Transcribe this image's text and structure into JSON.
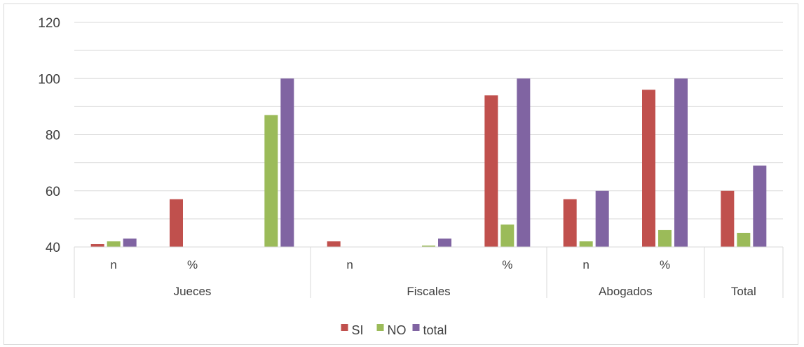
{
  "chart_data": {
    "type": "bar",
    "title": "",
    "xlabel": "",
    "ylabel": "",
    "ylim": [
      40,
      120
    ],
    "yticks": [
      40,
      60,
      80,
      100,
      120
    ],
    "grid": true,
    "legend_position": "bottom",
    "y_tick_labels": [
      {
        "value": 40,
        "text": "40"
      },
      {
        "value": 60,
        "text": "60"
      },
      {
        "value": 80,
        "text": "80"
      },
      {
        "value": 100,
        "text": "100"
      },
      {
        "value": 120,
        "text": "120"
      }
    ],
    "sub_labels": [
      "n",
      "%",
      "",
      "n",
      "",
      "%",
      "n",
      "%",
      ""
    ],
    "groups": [
      {
        "label": "Jueces",
        "span": 3
      },
      {
        "label": "Fiscales",
        "span": 3
      },
      {
        "label": "Abogados",
        "span": 2
      },
      {
        "label": "Total",
        "span": 1
      }
    ],
    "series": [
      {
        "name": "SI",
        "color": "#c0504d",
        "values": [
          41,
          57,
          null,
          42,
          null,
          94,
          57,
          96,
          60
        ]
      },
      {
        "name": "NO",
        "color": "#9bbb59",
        "values": [
          42,
          null,
          87,
          null,
          40.5,
          48,
          42,
          46,
          45
        ]
      },
      {
        "name": "total",
        "color": "#8064a2",
        "values": [
          43,
          null,
          100,
          null,
          43,
          100,
          60,
          100,
          69
        ]
      }
    ]
  }
}
